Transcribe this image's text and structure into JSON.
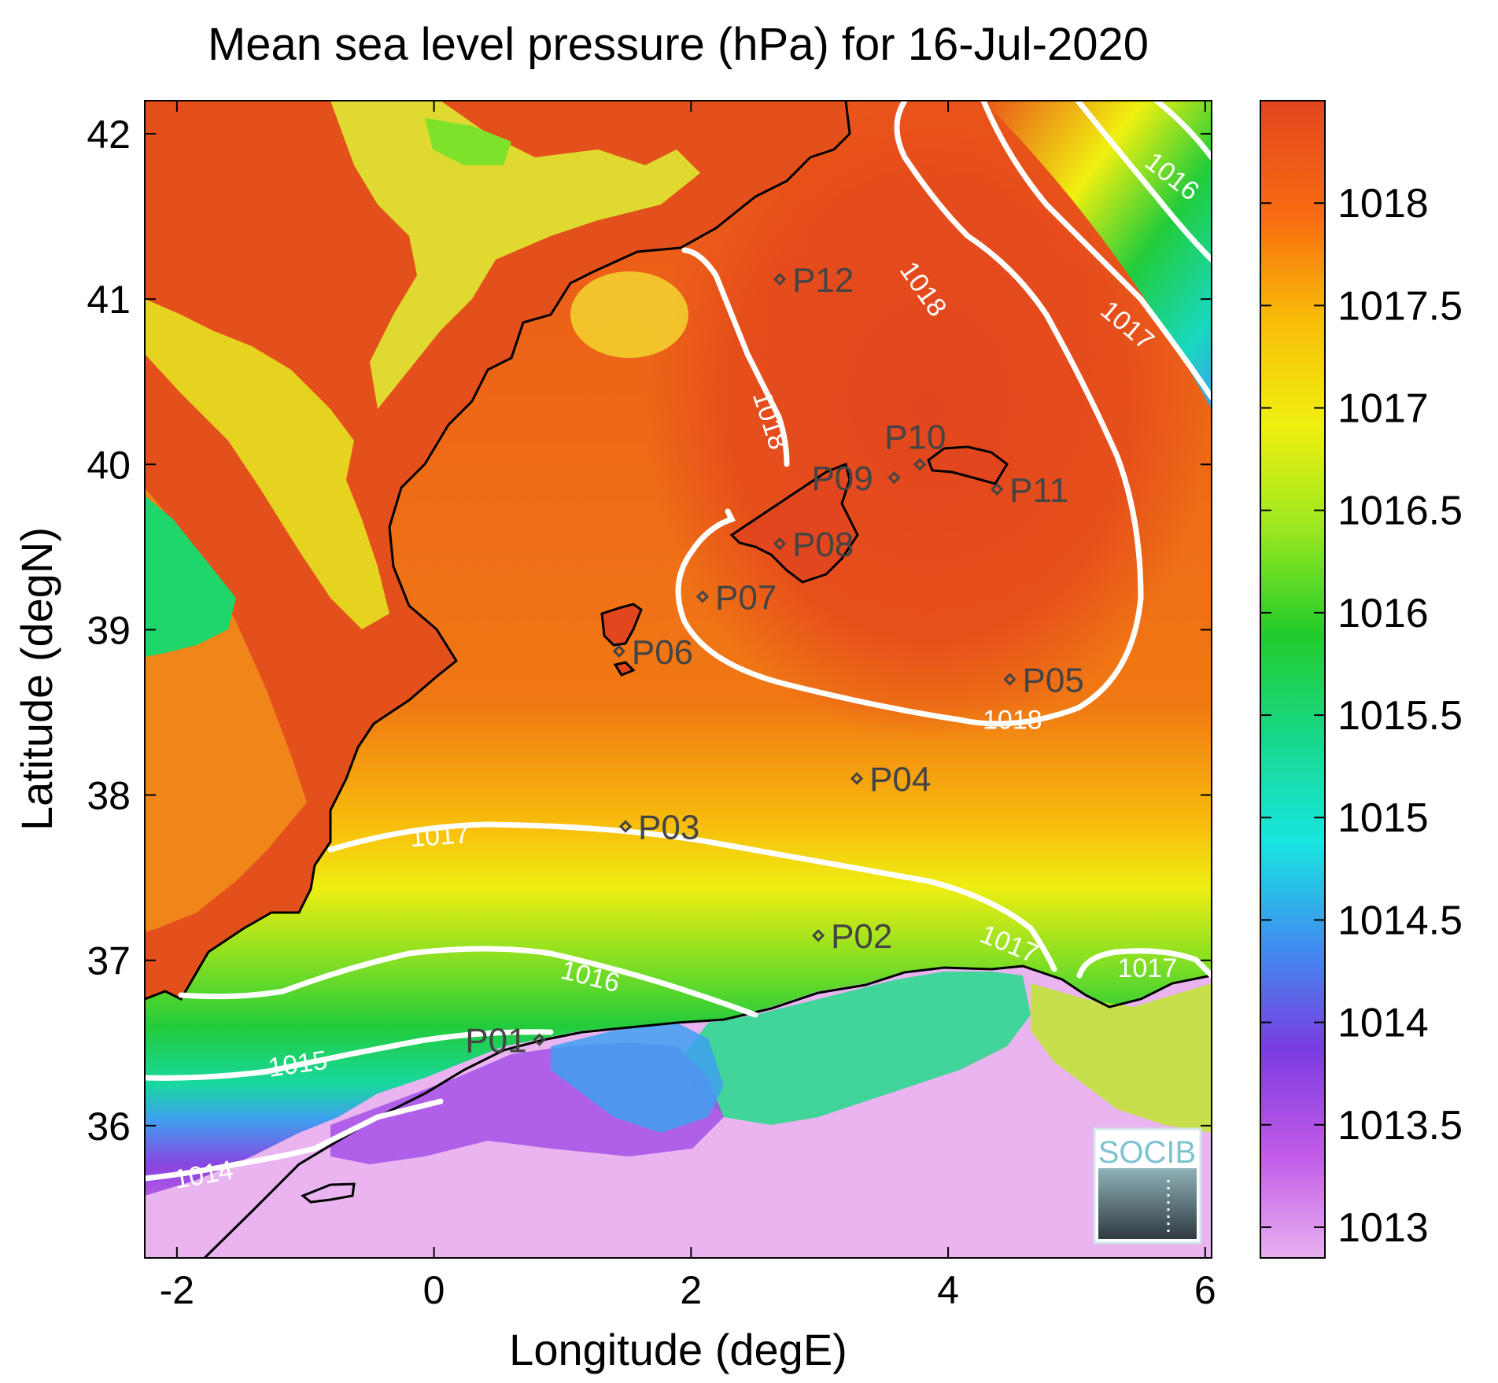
{
  "title": "Mean sea level pressure (hPa) for 16-Jul-2020",
  "x_axis": {
    "label": "Longitude (degE)",
    "range": [
      -2.25,
      6.05
    ],
    "ticks": [
      -2,
      0,
      2,
      4,
      6
    ],
    "tick_labels": [
      "-2",
      "0",
      "2",
      "4",
      "6"
    ]
  },
  "y_axis": {
    "label": "Latitude (degN)",
    "range": [
      35.2,
      42.2
    ],
    "ticks": [
      36,
      37,
      38,
      39,
      40,
      41,
      42
    ],
    "tick_labels": [
      "36",
      "37",
      "38",
      "39",
      "40",
      "41",
      "42"
    ]
  },
  "colorbar": {
    "range": [
      1012.85,
      1018.5
    ],
    "ticks": [
      1013,
      1013.5,
      1014,
      1014.5,
      1015,
      1015.5,
      1016,
      1016.5,
      1017,
      1017.5,
      1018
    ],
    "tick_labels": [
      "1013",
      "1013.5",
      "1014",
      "1014.5",
      "1015",
      "1015.5",
      "1016",
      "1016.5",
      "1017",
      "1017.5",
      "1018"
    ],
    "colors": [
      "#e8b0f0",
      "#c25ae8",
      "#7a3ce0",
      "#3f8ef0",
      "#18e6df",
      "#18d88a",
      "#22cc2a",
      "#9be820",
      "#f0f010",
      "#f8bd08",
      "#f86c12",
      "#e2461e"
    ]
  },
  "stations": [
    {
      "id": "P01",
      "lon": 0.82,
      "lat": 36.52
    },
    {
      "id": "P02",
      "lon": 2.99,
      "lat": 37.15
    },
    {
      "id": "P03",
      "lon": 1.49,
      "lat": 37.81
    },
    {
      "id": "P04",
      "lon": 3.29,
      "lat": 38.1
    },
    {
      "id": "P05",
      "lon": 4.48,
      "lat": 38.7
    },
    {
      "id": "P06",
      "lon": 1.44,
      "lat": 38.87
    },
    {
      "id": "P07",
      "lon": 2.09,
      "lat": 39.2
    },
    {
      "id": "P08",
      "lon": 2.69,
      "lat": 39.52
    },
    {
      "id": "P09",
      "lon": 3.58,
      "lat": 39.92
    },
    {
      "id": "P10",
      "lon": 3.78,
      "lat": 40.0
    },
    {
      "id": "P11",
      "lon": 4.38,
      "lat": 39.85
    },
    {
      "id": "P12",
      "lon": 2.69,
      "lat": 41.12
    }
  ],
  "contour_labels": [
    {
      "text": "1018",
      "lon": 3.75,
      "lat": 41.03,
      "rot": 55
    },
    {
      "text": "1018",
      "lon": 2.55,
      "lat": 40.25,
      "rot": 72
    },
    {
      "text": "1018",
      "lon": 4.5,
      "lat": 38.4,
      "rot": 0
    },
    {
      "text": "1017",
      "lon": 5.35,
      "lat": 40.8,
      "rot": 40
    },
    {
      "text": "1016",
      "lon": 5.7,
      "lat": 41.7,
      "rot": 38
    },
    {
      "text": "1017",
      "lon": 0.05,
      "lat": 37.7,
      "rot": -4
    },
    {
      "text": "1017",
      "lon": 4.45,
      "lat": 37.05,
      "rot": 22
    },
    {
      "text": "1017",
      "lon": 5.55,
      "lat": 36.9,
      "rot": 0
    },
    {
      "text": "1016",
      "lon": 1.2,
      "lat": 36.85,
      "rot": 14
    },
    {
      "text": "1015",
      "lon": -1.05,
      "lat": 36.32,
      "rot": -8
    },
    {
      "text": "1014",
      "lon": -1.78,
      "lat": 35.65,
      "rot": -10
    }
  ],
  "logo": {
    "text": "SOCIB"
  }
}
